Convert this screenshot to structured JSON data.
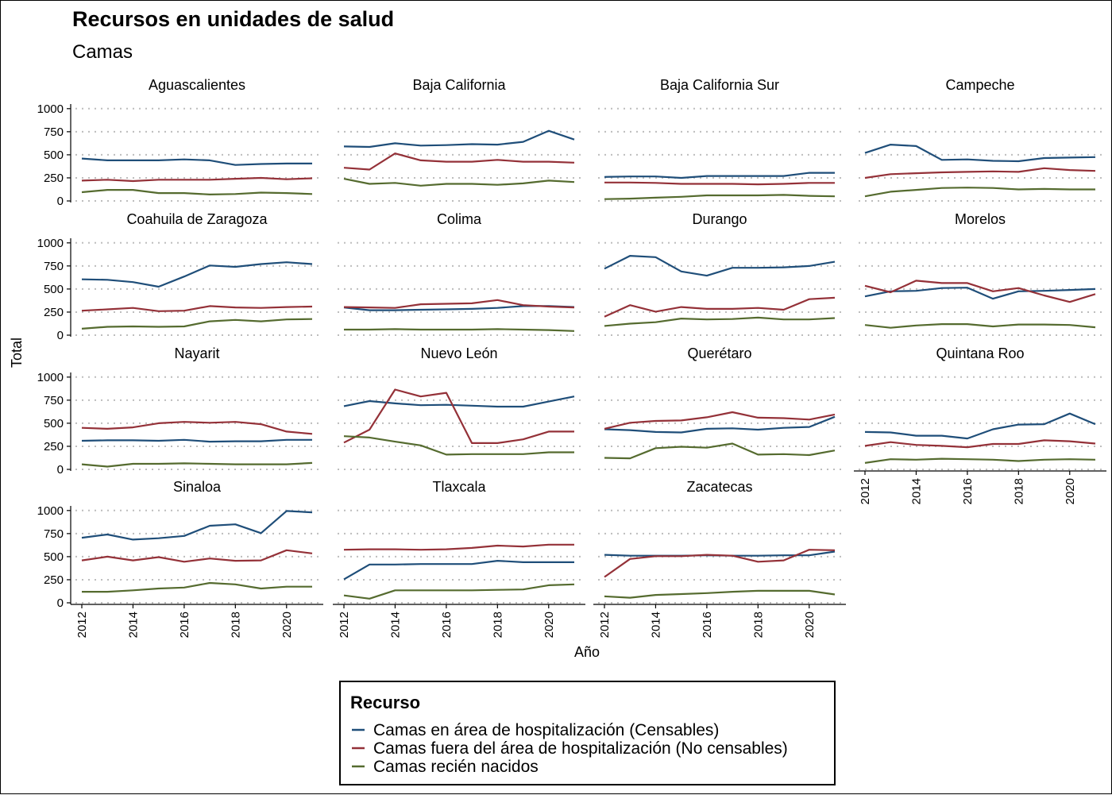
{
  "chart_data": {
    "type": "line",
    "title": "Recursos en unidades de salud",
    "subtitle": "Camas",
    "xlabel": "Año",
    "ylabel": "Total",
    "x": [
      2012,
      2013,
      2014,
      2015,
      2016,
      2017,
      2018,
      2019,
      2020,
      2021
    ],
    "x_ticks": [
      2012,
      2014,
      2016,
      2018,
      2020
    ],
    "y_ticks": [
      0,
      250,
      500,
      750,
      1000
    ],
    "ylim": [
      0,
      1050
    ],
    "grid": "horizontal-dotted",
    "legend": {
      "title": "Recurso",
      "position": "bottom",
      "entries": [
        {
          "name": "Camas en área de hospitalización (Censables)",
          "color": "#1f4e79"
        },
        {
          "name": "Camas fuera del área de hospitalización (No censables)",
          "color": "#943138"
        },
        {
          "name": "Camas recién nacidos",
          "color": "#556b2f"
        }
      ]
    },
    "facets": [
      {
        "name": "Aguascalientes",
        "series": [
          {
            "name": "Camas en área de hospitalización (Censables)",
            "values": [
              460,
              440,
              440,
              440,
              450,
              440,
              390,
              400,
              405,
              405
            ]
          },
          {
            "name": "Camas fuera del área de hospitalización (No censables)",
            "values": [
              220,
              230,
              215,
              230,
              230,
              230,
              240,
              250,
              235,
              245
            ]
          },
          {
            "name": "Camas recién nacidos",
            "values": [
              95,
              120,
              120,
              85,
              85,
              70,
              75,
              90,
              85,
              75
            ]
          }
        ]
      },
      {
        "name": "Baja California",
        "series": [
          {
            "name": "Camas en área de hospitalización (Censables)",
            "values": [
              590,
              585,
              625,
              600,
              605,
              615,
              610,
              640,
              760,
              665
            ]
          },
          {
            "name": "Camas fuera del área de hospitalización (No censables)",
            "values": [
              360,
              340,
              515,
              440,
              425,
              425,
              445,
              425,
              425,
              415
            ]
          },
          {
            "name": "Camas recién nacidos",
            "values": [
              240,
              185,
              195,
              165,
              185,
              185,
              175,
              190,
              220,
              205
            ]
          }
        ]
      },
      {
        "name": "Baja California Sur",
        "series": [
          {
            "name": "Camas en área de hospitalización (Censables)",
            "values": [
              260,
              265,
              265,
              250,
              270,
              270,
              270,
              270,
              305,
              305
            ]
          },
          {
            "name": "Camas fuera del área de hospitalización (No censables)",
            "values": [
              200,
              200,
              195,
              185,
              185,
              185,
              180,
              185,
              195,
              195
            ]
          },
          {
            "name": "Camas recién nacidos",
            "values": [
              20,
              25,
              35,
              45,
              60,
              60,
              60,
              65,
              55,
              50
            ]
          }
        ]
      },
      {
        "name": "Campeche",
        "series": [
          {
            "name": "Camas en área de hospitalización (Censables)",
            "values": [
              520,
              610,
              595,
              445,
              450,
              435,
              430,
              465,
              470,
              475
            ]
          },
          {
            "name": "Camas fuera del área de hospitalización (No censables)",
            "values": [
              250,
              290,
              300,
              310,
              315,
              320,
              315,
              355,
              335,
              325
            ]
          },
          {
            "name": "Camas recién nacidos",
            "values": [
              50,
              100,
              120,
              140,
              145,
              140,
              125,
              130,
              125,
              125
            ]
          }
        ]
      },
      {
        "name": "Coahuila de Zaragoza",
        "series": [
          {
            "name": "Camas en área de hospitalización (Censables)",
            "values": [
              605,
              600,
              575,
              525,
              635,
              755,
              740,
              770,
              790,
              770
            ]
          },
          {
            "name": "Camas fuera del área de hospitalización (No censables)",
            "values": [
              265,
              280,
              295,
              260,
              265,
              315,
              300,
              295,
              305,
              310
            ]
          },
          {
            "name": "Camas recién nacidos",
            "values": [
              70,
              90,
              95,
              90,
              95,
              150,
              165,
              150,
              170,
              175
            ]
          }
        ]
      },
      {
        "name": "Colima",
        "series": [
          {
            "name": "Camas en área de hospitalización (Censables)",
            "values": [
              300,
              270,
              270,
              275,
              280,
              285,
              295,
              315,
              315,
              305
            ]
          },
          {
            "name": "Camas fuera del área de hospitalización (No censables)",
            "values": [
              305,
              300,
              295,
              335,
              340,
              345,
              380,
              325,
              310,
              300
            ]
          },
          {
            "name": "Camas recién nacidos",
            "values": [
              60,
              60,
              65,
              60,
              60,
              60,
              65,
              60,
              55,
              45
            ]
          }
        ]
      },
      {
        "name": "Durango",
        "series": [
          {
            "name": "Camas en área de hospitalización (Censables)",
            "values": [
              720,
              860,
              845,
              690,
              645,
              730,
              730,
              735,
              750,
              795
            ]
          },
          {
            "name": "Camas fuera del área de hospitalización (No censables)",
            "values": [
              200,
              325,
              255,
              305,
              285,
              285,
              295,
              275,
              390,
              405
            ]
          },
          {
            "name": "Camas recién nacidos",
            "values": [
              100,
              125,
              140,
              180,
              170,
              175,
              190,
              170,
              170,
              185
            ]
          }
        ]
      },
      {
        "name": "Morelos",
        "series": [
          {
            "name": "Camas en área de hospitalización (Censables)",
            "values": [
              420,
              475,
              480,
              510,
              515,
              395,
              475,
              480,
              490,
              500
            ]
          },
          {
            "name": "Camas fuera del área de hospitalización (No censables)",
            "values": [
              535,
              465,
              590,
              565,
              565,
              475,
              510,
              430,
              360,
              445
            ]
          },
          {
            "name": "Camas recién nacidos",
            "values": [
              110,
              80,
              105,
              120,
              120,
              95,
              115,
              115,
              110,
              85
            ]
          }
        ]
      },
      {
        "name": "Nayarit",
        "series": [
          {
            "name": "Camas en área de hospitalización (Censables)",
            "values": [
              310,
              315,
              315,
              310,
              320,
              300,
              305,
              305,
              320,
              320
            ]
          },
          {
            "name": "Camas fuera del área de hospitalización (No censables)",
            "values": [
              450,
              440,
              455,
              500,
              515,
              505,
              515,
              490,
              410,
              385
            ]
          },
          {
            "name": "Camas recién nacidos",
            "values": [
              55,
              30,
              60,
              60,
              65,
              60,
              55,
              55,
              55,
              70
            ]
          }
        ]
      },
      {
        "name": "Nuevo León",
        "series": [
          {
            "name": "Camas en área de hospitalización (Censables)",
            "values": [
              685,
              740,
              715,
              695,
              700,
              690,
              680,
              680,
              735,
              790
            ]
          },
          {
            "name": "Camas fuera del área de hospitalización (No censables)",
            "values": [
              290,
              430,
              865,
              790,
              830,
              285,
              285,
              325,
              410,
              410
            ]
          },
          {
            "name": "Camas recién nacidos",
            "values": [
              360,
              345,
              300,
              260,
              160,
              165,
              165,
              165,
              185,
              185
            ]
          }
        ]
      },
      {
        "name": "Querétaro",
        "series": [
          {
            "name": "Camas en área de hospitalización (Censables)",
            "values": [
              435,
              425,
              405,
              400,
              440,
              445,
              430,
              450,
              460,
              570
            ]
          },
          {
            "name": "Camas fuera del área de hospitalización (No censables)",
            "values": [
              440,
              505,
              525,
              530,
              565,
              620,
              560,
              555,
              540,
              595
            ]
          },
          {
            "name": "Camas recién nacidos",
            "values": [
              125,
              120,
              230,
              245,
              235,
              280,
              160,
              165,
              155,
              205
            ]
          }
        ]
      },
      {
        "name": "Quintana Roo",
        "series": [
          {
            "name": "Camas en área de hospitalización (Censables)",
            "values": [
              405,
              400,
              365,
              365,
              335,
              435,
              485,
              490,
              605,
              490
            ]
          },
          {
            "name": "Camas fuera del área de hospitalización (No censables)",
            "values": [
              255,
              295,
              265,
              255,
              240,
              275,
              275,
              315,
              305,
              280
            ]
          },
          {
            "name": "Camas recién nacidos",
            "values": [
              70,
              110,
              105,
              115,
              110,
              105,
              90,
              105,
              110,
              105
            ]
          }
        ]
      },
      {
        "name": "Sinaloa",
        "series": [
          {
            "name": "Camas en área de hospitalización (Censables)",
            "values": [
              705,
              740,
              685,
              700,
              725,
              835,
              850,
              755,
              995,
              980
            ]
          },
          {
            "name": "Camas fuera del área de hospitalización (No censables)",
            "values": [
              460,
              500,
              460,
              495,
              445,
              480,
              455,
              460,
              570,
              535
            ]
          },
          {
            "name": "Camas recién nacidos",
            "values": [
              120,
              120,
              135,
              155,
              165,
              215,
              200,
              155,
              175,
              175
            ]
          }
        ]
      },
      {
        "name": "Tlaxcala",
        "series": [
          {
            "name": "Camas en área de hospitalización (Censables)",
            "values": [
              255,
              415,
              415,
              420,
              420,
              420,
              455,
              440,
              440,
              440
            ]
          },
          {
            "name": "Camas fuera del área de hospitalización (No censables)",
            "values": [
              575,
              580,
              580,
              575,
              580,
              595,
              620,
              610,
              630,
              630
            ]
          },
          {
            "name": "Camas recién nacidos",
            "values": [
              80,
              45,
              135,
              135,
              135,
              135,
              140,
              145,
              190,
              200
            ]
          }
        ]
      },
      {
        "name": "Zacatecas",
        "series": [
          {
            "name": "Camas en área de hospitalización (Censables)",
            "values": [
              520,
              510,
              510,
              510,
              515,
              510,
              510,
              515,
              515,
              555
            ]
          },
          {
            "name": "Camas fuera del área de hospitalización (No censables)",
            "values": [
              280,
              475,
              505,
              505,
              520,
              510,
              445,
              460,
              575,
              570
            ]
          },
          {
            "name": "Camas recién nacidos",
            "values": [
              70,
              55,
              85,
              95,
              105,
              120,
              130,
              130,
              130,
              90
            ]
          }
        ]
      }
    ]
  }
}
